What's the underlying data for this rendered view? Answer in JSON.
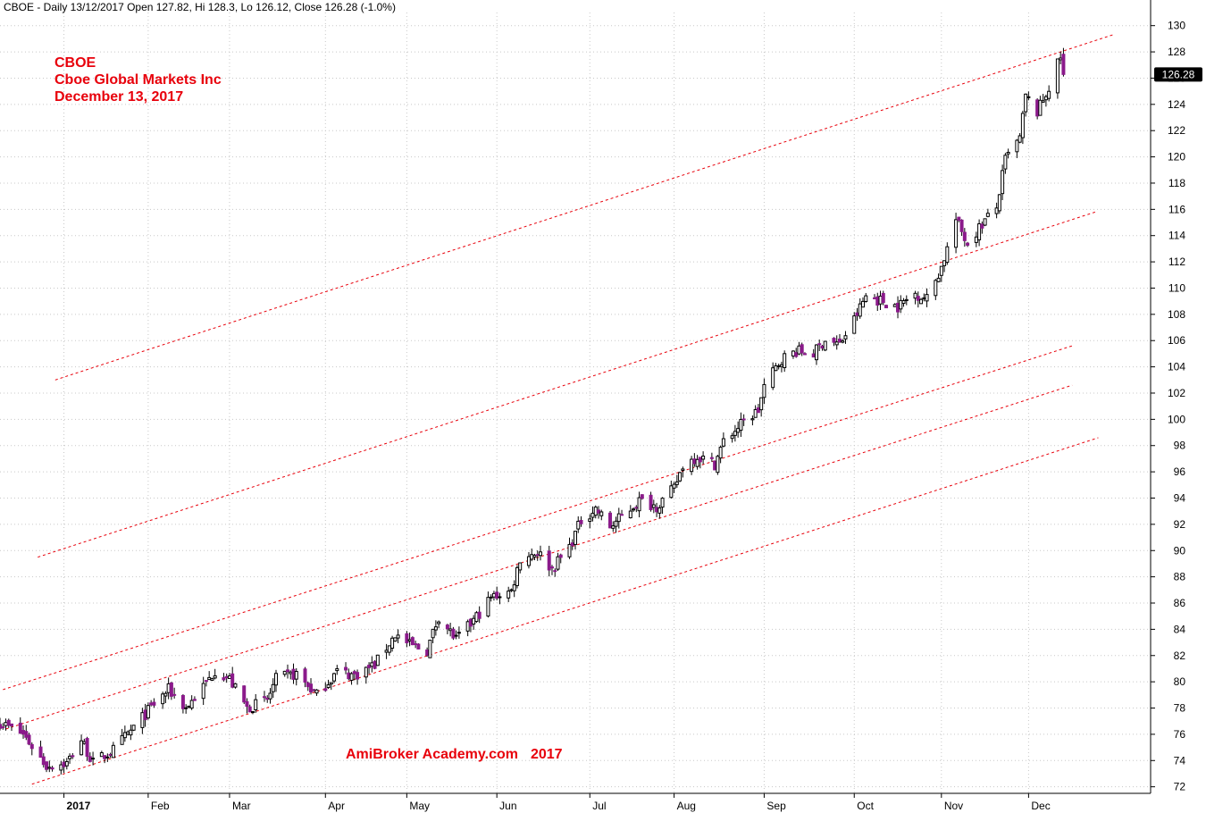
{
  "chart_data": {
    "type": "candlestick",
    "header": "CBOE - Daily 13/12/2017 Open 127.82, Hi 128.3, Lo 126.12, Close 126.28 (-1.0%)",
    "annotation_lines": [
      "CBOE",
      "Cboe Global Markets Inc",
      "December 13, 2017"
    ],
    "watermark": [
      "AmiBroker Academy.com",
      "2017"
    ],
    "last_price_label": "126.28",
    "last_close": 126.28,
    "ylim": [
      71.5,
      131
    ],
    "xlim": [
      "2016-12-12",
      "2018-01-12"
    ],
    "y_ticks": [
      72,
      74,
      76,
      78,
      80,
      82,
      84,
      86,
      88,
      90,
      92,
      94,
      96,
      98,
      100,
      102,
      104,
      106,
      108,
      110,
      112,
      114,
      116,
      118,
      120,
      122,
      124,
      126,
      128,
      130
    ],
    "x_ticks": [
      {
        "label": "2017",
        "date": "2017-01-03",
        "bold": true
      },
      {
        "label": "Feb",
        "date": "2017-02-01"
      },
      {
        "label": "Mar",
        "date": "2017-03-01"
      },
      {
        "label": "Apr",
        "date": "2017-04-03"
      },
      {
        "label": "May",
        "date": "2017-05-01"
      },
      {
        "label": "Jun",
        "date": "2017-06-01"
      },
      {
        "label": "Jul",
        "date": "2017-07-03"
      },
      {
        "label": "Aug",
        "date": "2017-08-01"
      },
      {
        "label": "Sep",
        "date": "2017-09-01"
      },
      {
        "label": "Oct",
        "date": "2017-10-02"
      },
      {
        "label": "Nov",
        "date": "2017-11-01"
      },
      {
        "label": "Dec",
        "date": "2017-12-01"
      }
    ],
    "trend_lines": [
      {
        "start": {
          "date": "2016-12-31",
          "price": 103.0
        },
        "end": {
          "date": "2017-12-30",
          "price": 129.3
        }
      },
      {
        "start": {
          "date": "2016-12-25",
          "price": 89.5
        },
        "end": {
          "date": "2017-12-24",
          "price": 115.8
        }
      },
      {
        "start": {
          "date": "2016-12-13",
          "price": 79.4
        },
        "end": {
          "date": "2017-12-16",
          "price": 105.6
        }
      },
      {
        "start": {
          "date": "2016-12-14",
          "price": 76.4
        },
        "end": {
          "date": "2017-12-16",
          "price": 102.6
        }
      },
      {
        "start": {
          "date": "2016-12-23",
          "price": 72.2
        },
        "end": {
          "date": "2017-12-25",
          "price": 98.6
        }
      }
    ],
    "close_anchors": [
      {
        "date": "2016-12-12",
        "close": 76.9
      },
      {
        "date": "2016-12-20",
        "close": 76.0
      },
      {
        "date": "2016-12-28",
        "close": 73.6
      },
      {
        "date": "2017-01-04",
        "close": 73.8
      },
      {
        "date": "2017-01-09",
        "close": 75.6
      },
      {
        "date": "2017-01-13",
        "close": 73.8
      },
      {
        "date": "2017-01-20",
        "close": 74.8
      },
      {
        "date": "2017-01-27",
        "close": 76.5
      },
      {
        "date": "2017-02-03",
        "close": 78.3
      },
      {
        "date": "2017-02-08",
        "close": 79.4
      },
      {
        "date": "2017-02-14",
        "close": 78.0
      },
      {
        "date": "2017-02-21",
        "close": 79.9
      },
      {
        "date": "2017-02-24",
        "close": 80.9
      },
      {
        "date": "2017-03-01",
        "close": 80.2
      },
      {
        "date": "2017-03-07",
        "close": 78.0
      },
      {
        "date": "2017-03-14",
        "close": 78.6
      },
      {
        "date": "2017-03-17",
        "close": 80.2
      },
      {
        "date": "2017-03-24",
        "close": 80.6
      },
      {
        "date": "2017-03-31",
        "close": 79.0
      },
      {
        "date": "2017-04-07",
        "close": 80.8
      },
      {
        "date": "2017-04-13",
        "close": 80.5
      },
      {
        "date": "2017-04-20",
        "close": 81.3
      },
      {
        "date": "2017-04-27",
        "close": 83.6
      },
      {
        "date": "2017-05-02",
        "close": 82.8
      },
      {
        "date": "2017-05-08",
        "close": 82.4
      },
      {
        "date": "2017-05-12",
        "close": 85.0
      },
      {
        "date": "2017-05-18",
        "close": 83.2
      },
      {
        "date": "2017-05-23",
        "close": 84.4
      },
      {
        "date": "2017-05-30",
        "close": 86.4
      },
      {
        "date": "2017-06-02",
        "close": 86.7
      },
      {
        "date": "2017-06-06",
        "close": 86.9
      },
      {
        "date": "2017-06-09",
        "close": 89.4
      },
      {
        "date": "2017-06-15",
        "close": 89.9
      },
      {
        "date": "2017-06-20",
        "close": 88.6
      },
      {
        "date": "2017-06-26",
        "close": 90.3
      },
      {
        "date": "2017-06-30",
        "close": 92.3
      },
      {
        "date": "2017-07-05",
        "close": 93.2
      },
      {
        "date": "2017-07-10",
        "close": 91.8
      },
      {
        "date": "2017-07-14",
        "close": 92.6
      },
      {
        "date": "2017-07-20",
        "close": 93.8
      },
      {
        "date": "2017-07-26",
        "close": 93.4
      },
      {
        "date": "2017-08-01",
        "close": 94.7
      },
      {
        "date": "2017-08-04",
        "close": 96.5
      },
      {
        "date": "2017-08-09",
        "close": 97.2
      },
      {
        "date": "2017-08-15",
        "close": 96.6
      },
      {
        "date": "2017-08-18",
        "close": 98.3
      },
      {
        "date": "2017-08-24",
        "close": 99.6
      },
      {
        "date": "2017-08-30",
        "close": 100.7
      },
      {
        "date": "2017-09-01",
        "close": 102.5
      },
      {
        "date": "2017-09-07",
        "close": 104.6
      },
      {
        "date": "2017-09-12",
        "close": 105.2
      },
      {
        "date": "2017-09-18",
        "close": 105.0
      },
      {
        "date": "2017-09-22",
        "close": 106.1
      },
      {
        "date": "2017-09-27",
        "close": 105.7
      },
      {
        "date": "2017-10-02",
        "close": 107.6
      },
      {
        "date": "2017-10-06",
        "close": 109.4
      },
      {
        "date": "2017-10-12",
        "close": 109.0
      },
      {
        "date": "2017-10-17",
        "close": 108.6
      },
      {
        "date": "2017-10-23",
        "close": 109.6
      },
      {
        "date": "2017-10-27",
        "close": 109.2
      },
      {
        "date": "2017-11-01",
        "close": 111.6
      },
      {
        "date": "2017-11-06",
        "close": 115.2
      },
      {
        "date": "2017-11-10",
        "close": 113.4
      },
      {
        "date": "2017-11-15",
        "close": 114.9
      },
      {
        "date": "2017-11-20",
        "close": 116.1
      },
      {
        "date": "2017-11-23",
        "close": 119.8
      },
      {
        "date": "2017-11-28",
        "close": 121.4
      },
      {
        "date": "2017-11-30",
        "close": 124.6
      },
      {
        "date": "2017-12-04",
        "close": 123.4
      },
      {
        "date": "2017-12-08",
        "close": 125.3
      },
      {
        "date": "2017-12-12",
        "close": 127.6
      },
      {
        "date": "2017-12-13",
        "close": 126.28
      }
    ],
    "colors": {
      "up_body": "#ffffff",
      "down_body": "#8b1a8b",
      "wick": "#000000",
      "trend_line": "#e8000b",
      "grid": "#c8c8c8",
      "annotation": "#e8000b",
      "price_label_bg": "#000000",
      "price_label_text": "#ffffff"
    }
  }
}
